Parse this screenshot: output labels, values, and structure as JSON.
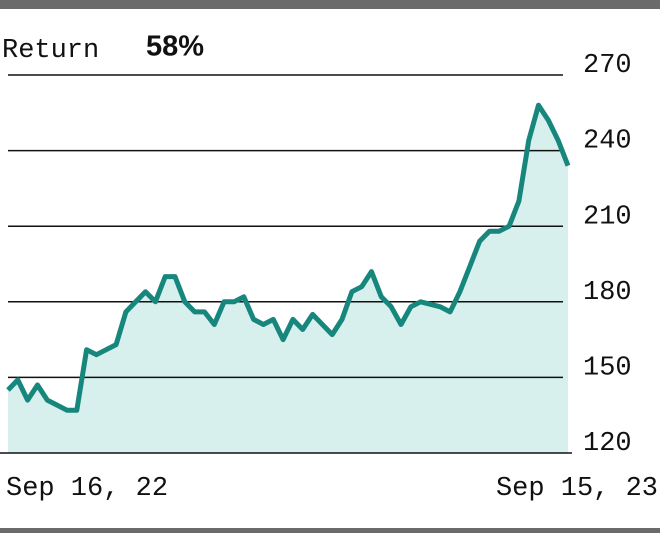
{
  "chart_data": {
    "type": "area",
    "title": "Return",
    "annotation": "58%",
    "categories": [
      "Sep 16, 22",
      null,
      null,
      null,
      null,
      null,
      null,
      null,
      null,
      null,
      null,
      null,
      null,
      null,
      null,
      null,
      null,
      null,
      null,
      null,
      null,
      null,
      null,
      null,
      null,
      null,
      null,
      null,
      null,
      null,
      null,
      null,
      null,
      null,
      null,
      null,
      null,
      null,
      null,
      null,
      null,
      null,
      null,
      null,
      null,
      null,
      null,
      null,
      null,
      null,
      null,
      null,
      null,
      null,
      null,
      null,
      null,
      "Sep 15, 23"
    ],
    "values": [
      145,
      149,
      141,
      147,
      141,
      139,
      137,
      137,
      161,
      159,
      161,
      163,
      176,
      180,
      184,
      180,
      190,
      190,
      180,
      176,
      176,
      171,
      180,
      180,
      182,
      173,
      171,
      173,
      165,
      173,
      169,
      175,
      171,
      167,
      173,
      184,
      186,
      192,
      182,
      178,
      171,
      178,
      180,
      179,
      178,
      176,
      184,
      194,
      204,
      208,
      208,
      210,
      220,
      244,
      258,
      252,
      244,
      234
    ],
    "color": "#17877e",
    "fill": "#d7efed",
    "ylim": [
      120,
      270
    ],
    "yticks": [
      120,
      150,
      180,
      210,
      240,
      270
    ],
    "grid": true
  }
}
